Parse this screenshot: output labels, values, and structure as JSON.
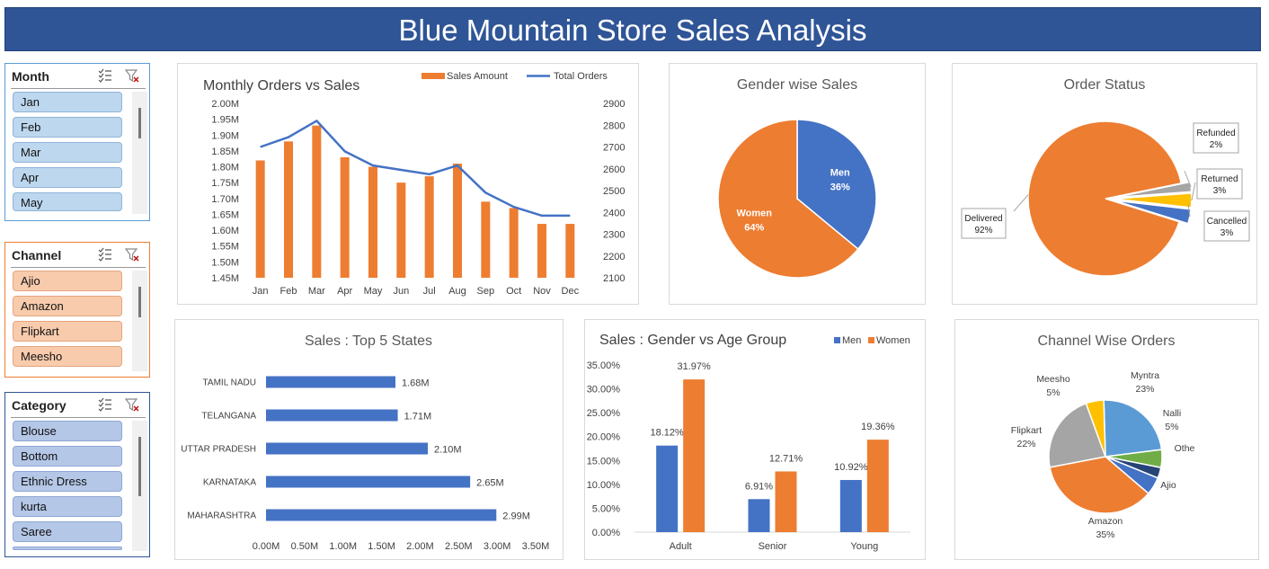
{
  "header": {
    "title": "Blue Mountain Store Sales Analysis"
  },
  "colors": {
    "banner": "#2f5597",
    "orange": "#ed7d31",
    "blue": "#4472c4",
    "gray": "#a5a5a5",
    "yellow": "#ffc000",
    "lightblue": "#5b9bd5",
    "green": "#70ad47",
    "navy": "#264478"
  },
  "slicers": [
    {
      "title": "Month",
      "border": "#5b9bd5",
      "item_bg": "#bdd7ee",
      "item_border": "#8fb4d9",
      "items": [
        "Jan",
        "Feb",
        "Mar",
        "Apr",
        "May"
      ]
    },
    {
      "title": "Channel",
      "border": "#ed7d31",
      "item_bg": "#f8cbad",
      "item_border": "#e4a57d",
      "items": [
        "Ajio",
        "Amazon",
        "Flipkart",
        "Meesho"
      ]
    },
    {
      "title": "Category",
      "border": "#2f5597",
      "item_bg": "#b4c7e7",
      "item_border": "#8ea6d4",
      "items": [
        "Blouse",
        "Bottom",
        "Ethnic Dress",
        "kurta",
        "Saree"
      ]
    }
  ],
  "chart_data": [
    {
      "type": "bar",
      "title": "Monthly Orders vs Sales",
      "categories": [
        "Jan",
        "Feb",
        "Mar",
        "Apr",
        "May",
        "Jun",
        "Jul",
        "Aug",
        "Sep",
        "Oct",
        "Nov",
        "Dec"
      ],
      "series": [
        {
          "name": "Sales Amount",
          "type": "bar",
          "axis": "left",
          "values": [
            1.82,
            1.88,
            1.93,
            1.83,
            1.8,
            1.75,
            1.77,
            1.81,
            1.69,
            1.67,
            1.62,
            1.62
          ]
        },
        {
          "name": "Total Orders",
          "type": "line",
          "axis": "right",
          "values": [
            2700,
            2745,
            2820,
            2680,
            2615,
            2595,
            2575,
            2615,
            2490,
            2425,
            2385,
            2385
          ]
        }
      ],
      "y_left": {
        "ylim": [
          1.45,
          2.0
        ],
        "ticks": [
          "1.45M",
          "1.50M",
          "1.55M",
          "1.60M",
          "1.65M",
          "1.70M",
          "1.75M",
          "1.80M",
          "1.85M",
          "1.90M",
          "1.95M",
          "2.00M"
        ]
      },
      "y_right": {
        "ylim": [
          2100,
          2900
        ],
        "ticks": [
          "2100",
          "2200",
          "2300",
          "2400",
          "2500",
          "2600",
          "2700",
          "2800",
          "2900"
        ]
      },
      "legend": "top-right"
    },
    {
      "type": "pie",
      "title": "Gender wise Sales",
      "slices": [
        {
          "label": "Men",
          "value": 36,
          "text": "36%"
        },
        {
          "label": "Women",
          "value": 64,
          "text": "64%"
        }
      ]
    },
    {
      "type": "pie",
      "title": "Order Status",
      "slices": [
        {
          "label": "Delivered",
          "value": 92,
          "text": "92%"
        },
        {
          "label": "Refunded",
          "value": 2,
          "text": "2%"
        },
        {
          "label": "Returned",
          "value": 3,
          "text": "3%"
        },
        {
          "label": "Cancelled",
          "value": 3,
          "text": "3%"
        }
      ]
    },
    {
      "type": "bar",
      "orientation": "horizontal",
      "title": "Sales : Top 5 States",
      "categories": [
        "TAMIL NADU",
        "TELANGANA",
        "UTTAR PRADESH",
        "KARNATAKA",
        "MAHARASHTRA"
      ],
      "values": [
        1.68,
        1.71,
        2.1,
        2.65,
        2.99
      ],
      "labels": [
        "1.68M",
        "1.71M",
        "2.10M",
        "2.65M",
        "2.99M"
      ],
      "xlim": [
        0,
        3.5
      ],
      "x_ticks": [
        "0.00M",
        "0.50M",
        "1.00M",
        "1.50M",
        "2.00M",
        "2.50M",
        "3.00M",
        "3.50M"
      ]
    },
    {
      "type": "bar",
      "title": "Sales : Gender vs Age Group",
      "categories": [
        "Adult",
        "Senior",
        "Young"
      ],
      "series": [
        {
          "name": "Men",
          "values": [
            18.12,
            6.91,
            10.92
          ],
          "labels": [
            "18.12%",
            "6.91%",
            "10.92%"
          ]
        },
        {
          "name": "Women",
          "values": [
            31.97,
            12.71,
            19.36
          ],
          "labels": [
            "31.97%",
            "12.71%",
            "19.36%"
          ]
        }
      ],
      "ylim": [
        0,
        35
      ],
      "y_ticks": [
        "0.00%",
        "5.00%",
        "10.00%",
        "15.00%",
        "20.00%",
        "25.00%",
        "30.00%",
        "35.00%"
      ],
      "legend": "top-right"
    },
    {
      "type": "pie",
      "title": "Channel Wise Orders",
      "slices": [
        {
          "label": "Myntra",
          "value": 23,
          "text": "23%"
        },
        {
          "label": "Nalli",
          "value": 5,
          "text": "5%"
        },
        {
          "label": "Othe",
          "value": 3,
          "text": ""
        },
        {
          "label": "Ajio",
          "value": 5,
          "text": ""
        },
        {
          "label": "Amazon",
          "value": 35,
          "text": "35%"
        },
        {
          "label": "Flipkart",
          "value": 22,
          "text": "22%"
        },
        {
          "label": "Meesho",
          "value": 5,
          "text": "5%"
        }
      ]
    }
  ]
}
